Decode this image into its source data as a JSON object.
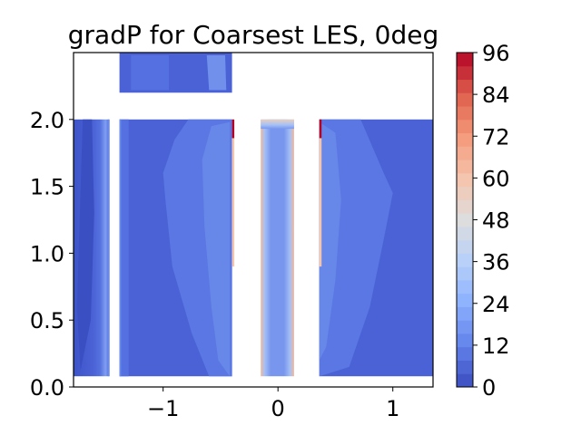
{
  "chart_data": {
    "type": "heatmap",
    "subtype": "filled-contour",
    "title": "gradP for Coarsest LES, 0deg",
    "xlabel": "",
    "ylabel": "",
    "xlim": [
      -1.78,
      1.35
    ],
    "ylim": [
      0.0,
      2.5
    ],
    "xticks": [
      -1,
      0,
      1
    ],
    "xtick_labels": [
      "−1",
      "0",
      "1"
    ],
    "yticks": [
      0.0,
      0.5,
      1.0,
      1.5,
      2.0
    ],
    "ytick_labels": [
      "0.0",
      "0.5",
      "1.0",
      "1.5",
      "2.0"
    ],
    "colorbar": {
      "colormap": "coolwarm",
      "min": 0,
      "max": 96,
      "levels": 25,
      "ticks": [
        0,
        12,
        24,
        36,
        48,
        60,
        72,
        84,
        96
      ],
      "tick_labels": [
        "0",
        "12",
        "24",
        "36",
        "48",
        "60",
        "72",
        "84",
        "96"
      ]
    },
    "regions": [
      {
        "name": "left column",
        "x": [
          -1.78,
          -1.47
        ],
        "y": [
          0.08,
          2.0
        ],
        "value_range": [
          0,
          8
        ],
        "edge_value": 14
      },
      {
        "name": "left-center block",
        "x": [
          -1.38,
          -0.4
        ],
        "y": [
          0.08,
          2.0
        ],
        "value_range": [
          3,
          12
        ],
        "edge_value": 96
      },
      {
        "name": "upper strip",
        "x": [
          -1.38,
          -0.4
        ],
        "y": [
          2.2,
          2.5
        ],
        "value_range": [
          4,
          12
        ]
      },
      {
        "name": "center column",
        "x": [
          -0.15,
          0.14
        ],
        "y": [
          0.08,
          2.0
        ],
        "value_range": [
          10,
          24
        ],
        "edge_value": 60
      },
      {
        "name": "right block",
        "x": [
          0.36,
          1.35
        ],
        "y": [
          0.08,
          2.0
        ],
        "value_range": [
          3,
          12
        ],
        "edge_value": 96
      }
    ],
    "grid": false,
    "legend": "none"
  }
}
